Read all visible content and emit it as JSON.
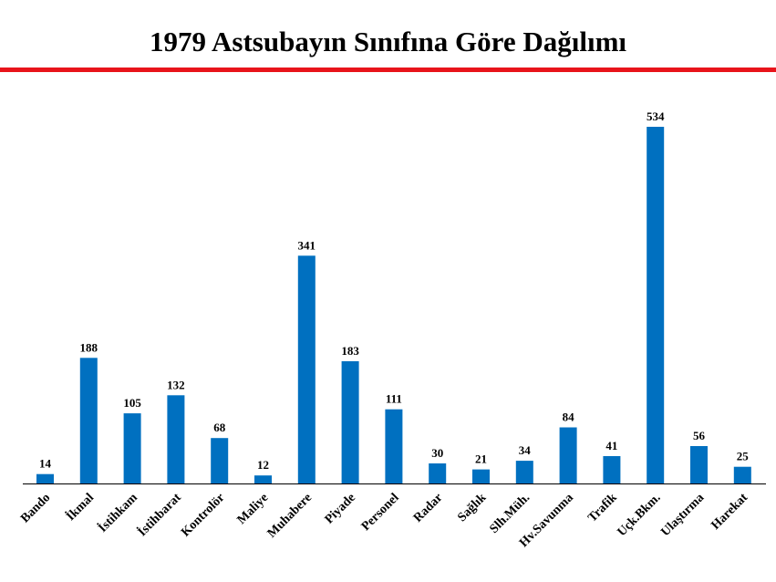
{
  "chart_data": {
    "type": "bar",
    "title": "1979 Astsubayın Sınıfına Göre Dağılımı",
    "categories": [
      "Bando",
      "İkmal",
      "İstihkam",
      "İstihbarat",
      "Kontrolör",
      "Maliye",
      "Muhabere",
      "Piyade",
      "Personel",
      "Radar",
      "Sağlık",
      "Slh.Müh.",
      "Hv.Savunma",
      "Trafik",
      "Uçk.Bkm.",
      "Ulaştırma",
      "Harekat"
    ],
    "values": [
      14,
      188,
      105,
      132,
      68,
      12,
      341,
      183,
      111,
      30,
      21,
      34,
      84,
      41,
      534,
      56,
      25
    ],
    "ylim": [
      0,
      534
    ],
    "bar_color": "#0070c0",
    "accent_color": "#e8141b",
    "grid": false,
    "legend": "none"
  }
}
